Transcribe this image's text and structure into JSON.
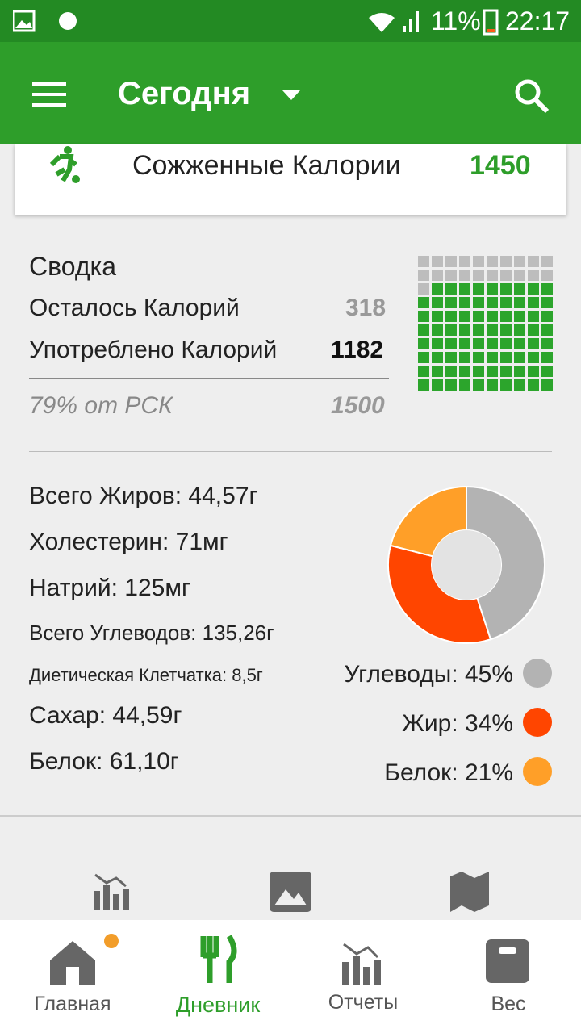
{
  "status_bar": {
    "battery": "11%",
    "time": "22:17"
  },
  "app_bar": {
    "title": "Сегодня"
  },
  "burned": {
    "label": "Сожженные Калории",
    "value": 1450
  },
  "summary": {
    "title": "Сводка",
    "remaining_label": "Осталось Калорий",
    "remaining": 318,
    "consumed_label": "Употреблено Калорий",
    "consumed": 1182,
    "rsk_label": "79% от РСК",
    "rsk_percent": 79,
    "rsk": 1500
  },
  "nutrients": [
    "Всего Жиров: 44,57г",
    "Холестерин: 71мг",
    "Натрий: 125мг",
    "Всего Углеводов: 135,26г",
    "Диетическая Клетчатка: 8,5г",
    "Сахар: 44,59г",
    "Белок: 61,10г"
  ],
  "macros": [
    {
      "label": "Углеводы: 45%",
      "value": 45,
      "color": "#b3b3b3"
    },
    {
      "label": "Жир: 34%",
      "value": 34,
      "color": "#ff4500"
    },
    {
      "label": "Белок: 21%",
      "value": 21,
      "color": "#ff9f28"
    }
  ],
  "nav": [
    "Главная",
    "Дневник",
    "Отчеты",
    "Вес"
  ]
}
